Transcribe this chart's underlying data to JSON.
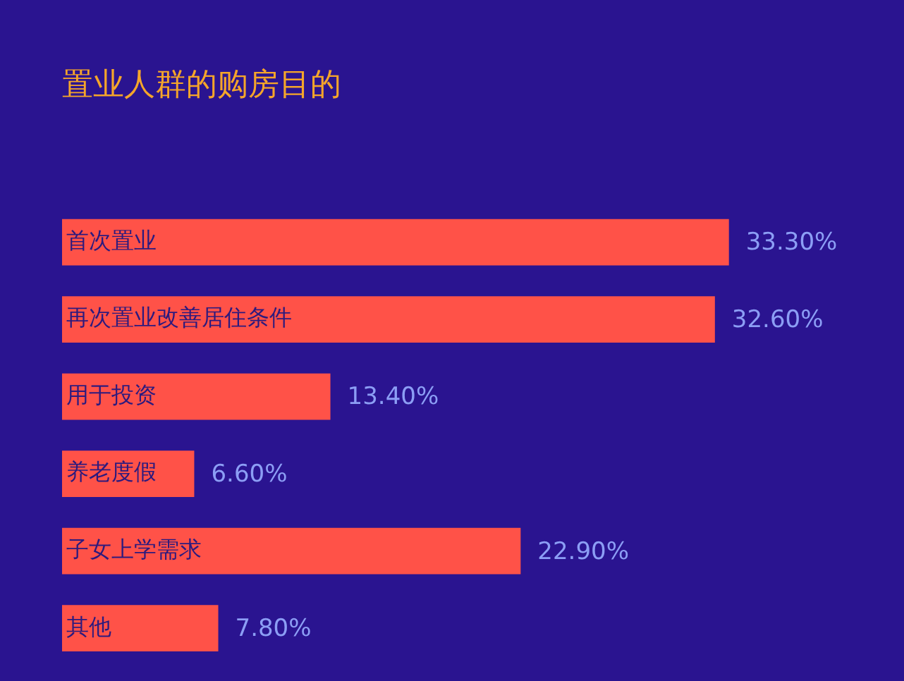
{
  "chart_data": {
    "type": "bar",
    "orientation": "horizontal",
    "title": "置业人群的购房目的",
    "categories": [
      "首次置业",
      "再次置业改善居住条件",
      "用于投资",
      "养老度假",
      "子女上学需求",
      "其他"
    ],
    "values": [
      33.3,
      32.6,
      13.4,
      6.6,
      22.9,
      7.8
    ],
    "value_labels": [
      "33.30%",
      "32.60%",
      "13.40%",
      "6.60%",
      "22.90%",
      "7.80%"
    ],
    "color": "#ff5248",
    "tick_labels": false
  }
}
